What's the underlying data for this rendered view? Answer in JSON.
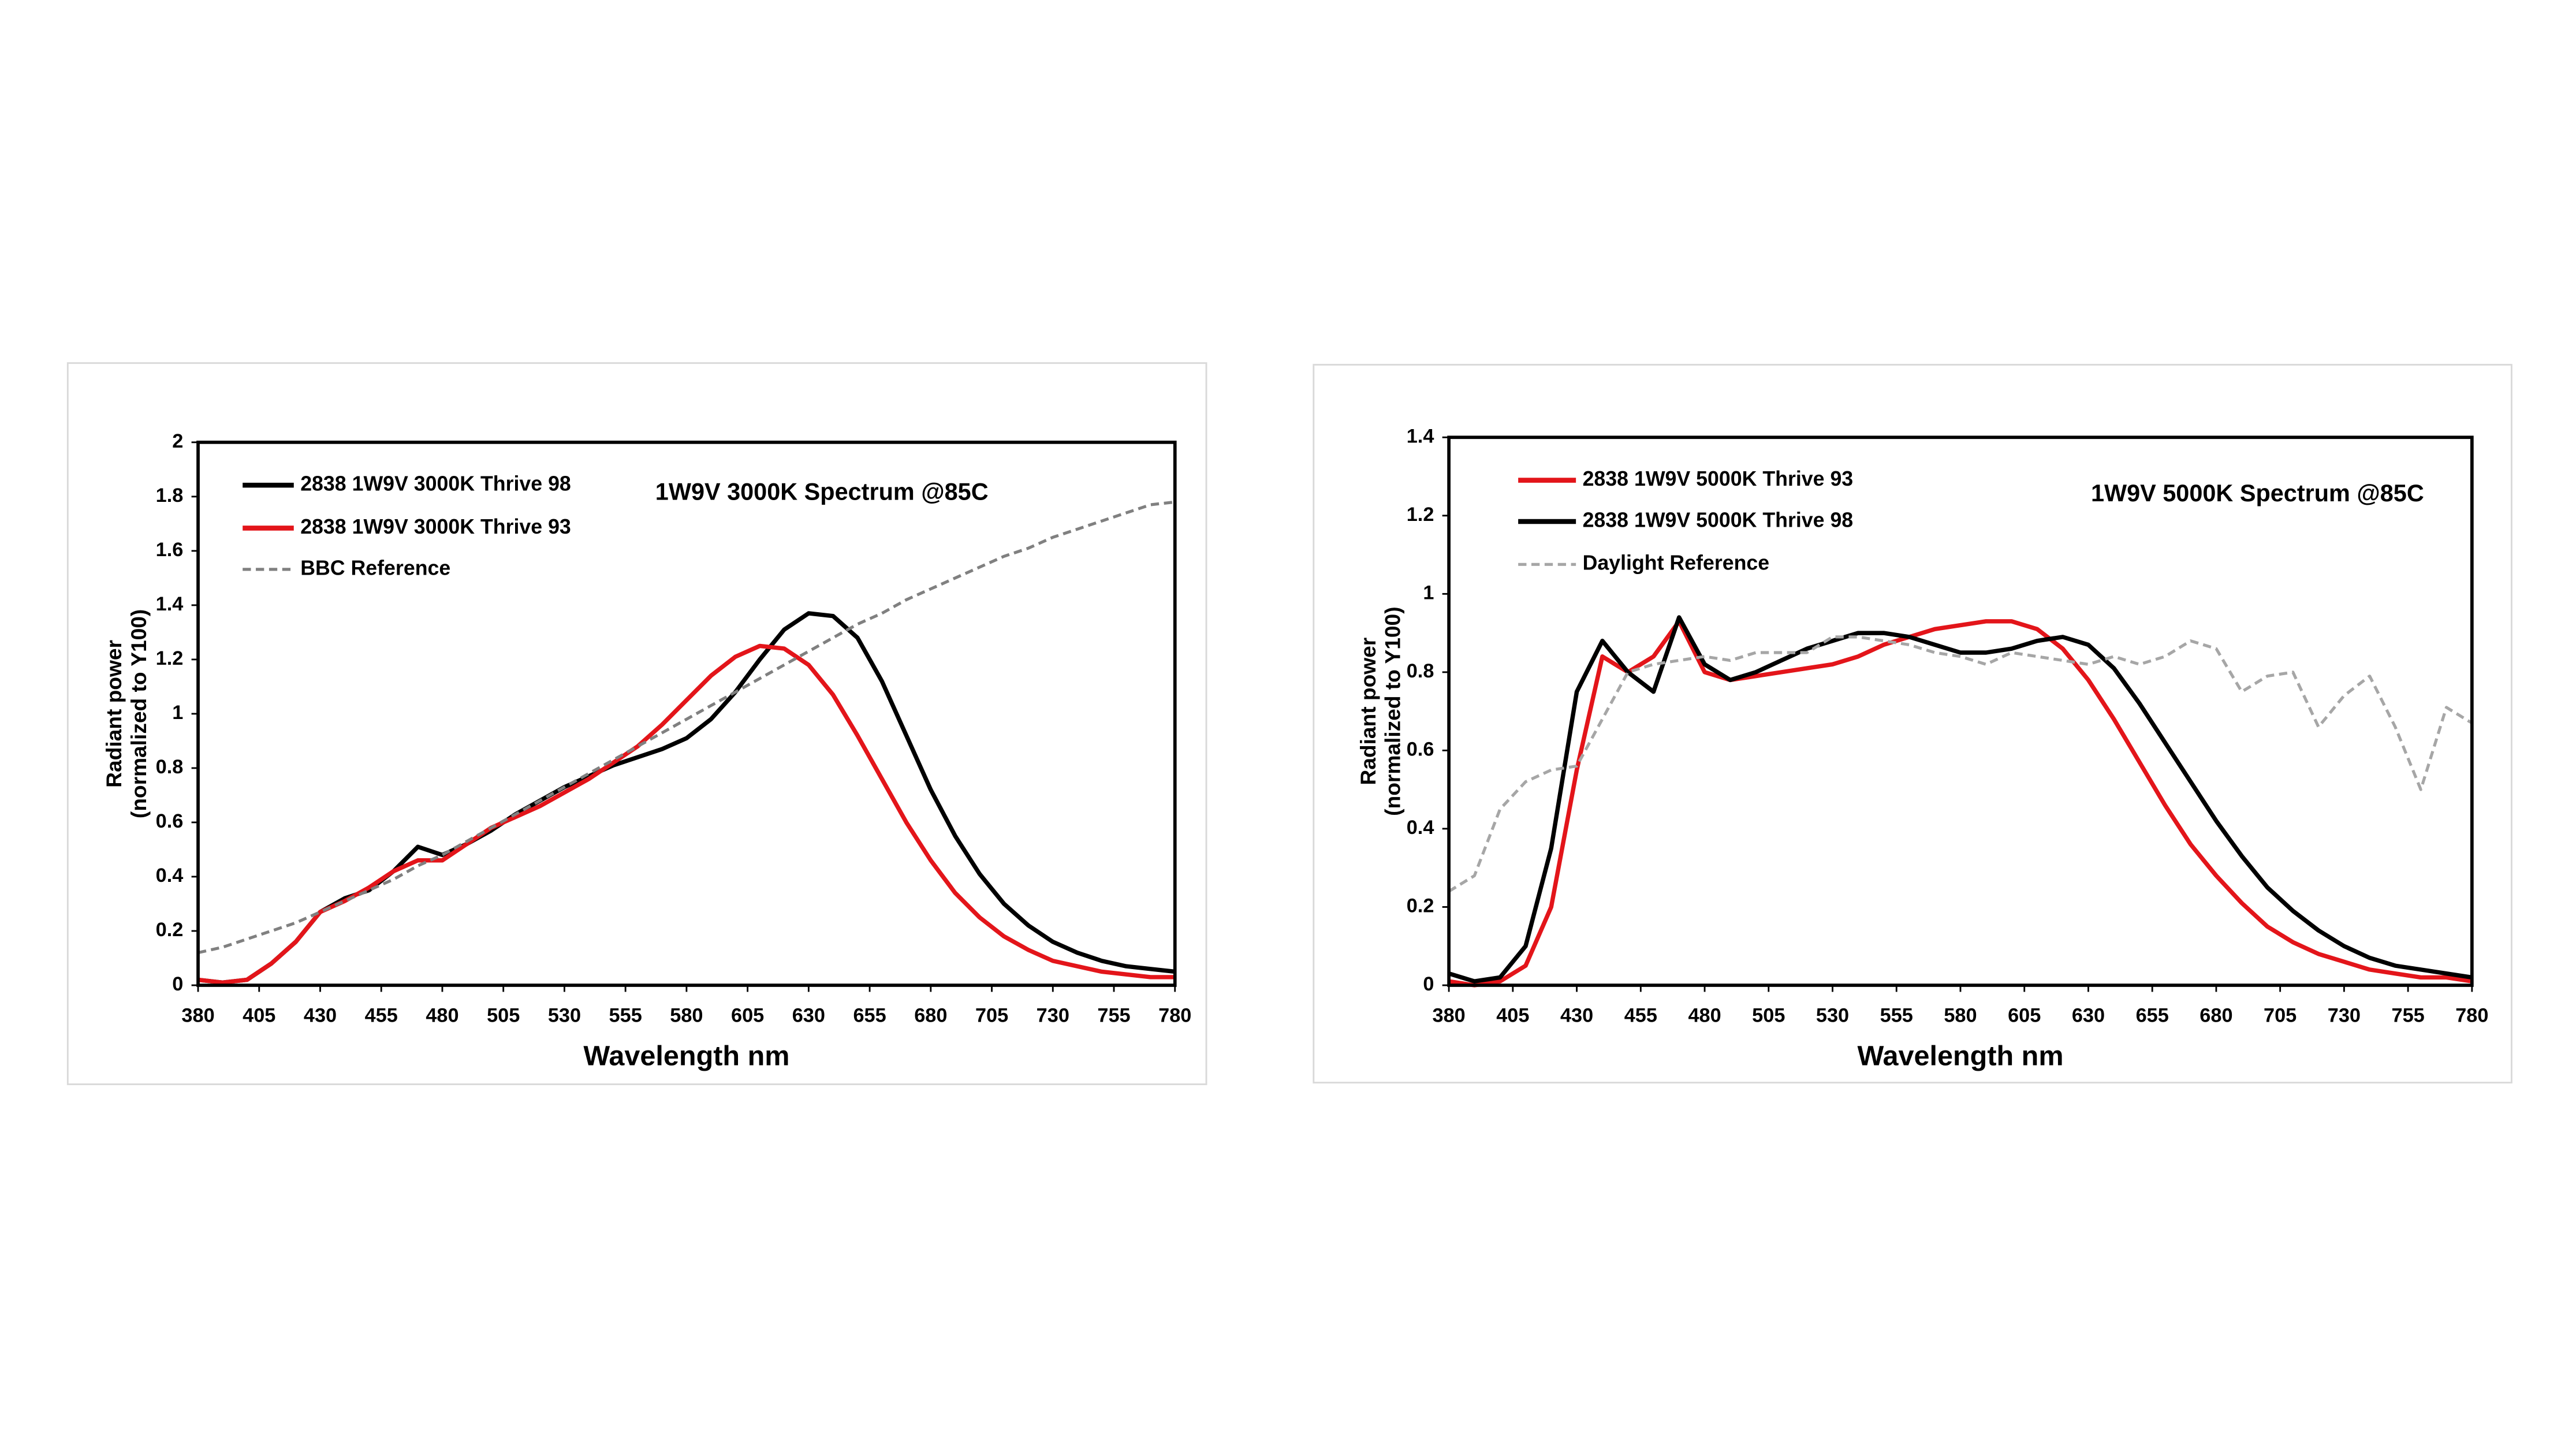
{
  "chart_data": [
    {
      "type": "line",
      "title": "1W9V 3000K Spectrum @85C",
      "xlabel": "Wavelength nm",
      "ylabel": [
        "Radiant power",
        "(normalized to Y100)"
      ],
      "xlim": [
        380,
        780
      ],
      "xticks": [
        380,
        405,
        430,
        455,
        480,
        505,
        530,
        555,
        580,
        605,
        630,
        655,
        680,
        705,
        730,
        755,
        780
      ],
      "ylim": [
        0,
        2
      ],
      "yticks": [
        0,
        0.2,
        0.4,
        0.6,
        0.8,
        1,
        1.2,
        1.4,
        1.6,
        1.8,
        2
      ],
      "x": [
        380,
        390,
        400,
        410,
        420,
        430,
        440,
        450,
        460,
        470,
        480,
        490,
        500,
        510,
        520,
        530,
        540,
        550,
        560,
        570,
        580,
        590,
        600,
        610,
        620,
        630,
        640,
        650,
        660,
        670,
        680,
        690,
        700,
        710,
        720,
        730,
        740,
        750,
        760,
        770,
        780
      ],
      "series": [
        {
          "name": "2838 1W9V 3000K Thrive 98",
          "color": "#000000",
          "dashed": false,
          "values": [
            0.02,
            0.01,
            0.02,
            0.08,
            0.16,
            0.27,
            0.32,
            0.35,
            0.42,
            0.51,
            0.48,
            0.52,
            0.57,
            0.63,
            0.68,
            0.73,
            0.77,
            0.81,
            0.84,
            0.87,
            0.91,
            0.98,
            1.08,
            1.2,
            1.31,
            1.37,
            1.36,
            1.28,
            1.12,
            0.92,
            0.72,
            0.55,
            0.41,
            0.3,
            0.22,
            0.16,
            0.12,
            0.09,
            0.07,
            0.06,
            0.05
          ]
        },
        {
          "name": "2838 1W9V 3000K Thrive 93",
          "color": "#e3151a",
          "dashed": false,
          "values": [
            0.02,
            0.01,
            0.02,
            0.08,
            0.16,
            0.27,
            0.31,
            0.36,
            0.42,
            0.46,
            0.46,
            0.52,
            0.58,
            0.62,
            0.66,
            0.71,
            0.76,
            0.82,
            0.88,
            0.96,
            1.05,
            1.14,
            1.21,
            1.25,
            1.24,
            1.18,
            1.07,
            0.92,
            0.76,
            0.6,
            0.46,
            0.34,
            0.25,
            0.18,
            0.13,
            0.09,
            0.07,
            0.05,
            0.04,
            0.03,
            0.03
          ]
        },
        {
          "name": "BBC Reference",
          "color": "#808080",
          "dashed": true,
          "values": [
            0.12,
            0.14,
            0.17,
            0.2,
            0.23,
            0.27,
            0.31,
            0.35,
            0.39,
            0.44,
            0.48,
            0.53,
            0.58,
            0.63,
            0.68,
            0.73,
            0.78,
            0.83,
            0.88,
            0.93,
            0.98,
            1.03,
            1.08,
            1.13,
            1.18,
            1.23,
            1.28,
            1.33,
            1.37,
            1.42,
            1.46,
            1.5,
            1.54,
            1.58,
            1.61,
            1.65,
            1.68,
            1.71,
            1.74,
            1.77,
            1.78
          ]
        }
      ]
    },
    {
      "type": "line",
      "title": "1W9V 5000K Spectrum @85C",
      "xlabel": "Wavelength nm",
      "ylabel": [
        "Radiant power",
        "(normalized to Y100)"
      ],
      "xlim": [
        380,
        780
      ],
      "xticks": [
        380,
        405,
        430,
        455,
        480,
        505,
        530,
        555,
        580,
        605,
        630,
        655,
        680,
        705,
        730,
        755,
        780
      ],
      "ylim": [
        0,
        1.4
      ],
      "yticks": [
        0,
        0.2,
        0.4,
        0.6,
        0.8,
        1,
        1.2,
        1.4
      ],
      "x": [
        380,
        390,
        400,
        410,
        420,
        430,
        440,
        450,
        460,
        470,
        480,
        490,
        500,
        510,
        520,
        530,
        540,
        550,
        560,
        570,
        580,
        590,
        600,
        610,
        620,
        630,
        640,
        650,
        660,
        670,
        680,
        690,
        700,
        710,
        720,
        730,
        740,
        750,
        760,
        770,
        780
      ],
      "series": [
        {
          "name": "2838 1W9V 5000K Thrive 93",
          "color": "#e3151a",
          "dashed": false,
          "values": [
            0.01,
            0,
            0.01,
            0.05,
            0.2,
            0.55,
            0.84,
            0.8,
            0.84,
            0.93,
            0.8,
            0.78,
            0.79,
            0.8,
            0.81,
            0.82,
            0.84,
            0.87,
            0.89,
            0.91,
            0.92,
            0.93,
            0.93,
            0.91,
            0.86,
            0.78,
            0.68,
            0.57,
            0.46,
            0.36,
            0.28,
            0.21,
            0.15,
            0.11,
            0.08,
            0.06,
            0.04,
            0.03,
            0.02,
            0.02,
            0.01
          ]
        },
        {
          "name": "2838 1W9V 5000K Thrive 98",
          "color": "#000000",
          "dashed": false,
          "values": [
            0.03,
            0.01,
            0.02,
            0.1,
            0.35,
            0.75,
            0.88,
            0.8,
            0.75,
            0.94,
            0.82,
            0.78,
            0.8,
            0.83,
            0.86,
            0.88,
            0.9,
            0.9,
            0.89,
            0.87,
            0.85,
            0.85,
            0.86,
            0.88,
            0.89,
            0.87,
            0.81,
            0.72,
            0.62,
            0.52,
            0.42,
            0.33,
            0.25,
            0.19,
            0.14,
            0.1,
            0.07,
            0.05,
            0.04,
            0.03,
            0.02
          ]
        },
        {
          "name": "Daylight Reference",
          "color": "#a6a6a6",
          "dashed": true,
          "values": [
            0.24,
            0.28,
            0.45,
            0.52,
            0.55,
            0.56,
            0.68,
            0.8,
            0.82,
            0.83,
            0.84,
            0.83,
            0.85,
            0.85,
            0.85,
            0.89,
            0.89,
            0.88,
            0.87,
            0.85,
            0.84,
            0.82,
            0.85,
            0.84,
            0.83,
            0.82,
            0.84,
            0.82,
            0.84,
            0.88,
            0.86,
            0.75,
            0.79,
            0.8,
            0.66,
            0.74,
            0.79,
            0.66,
            0.5,
            0.71,
            0.67
          ]
        }
      ]
    }
  ]
}
